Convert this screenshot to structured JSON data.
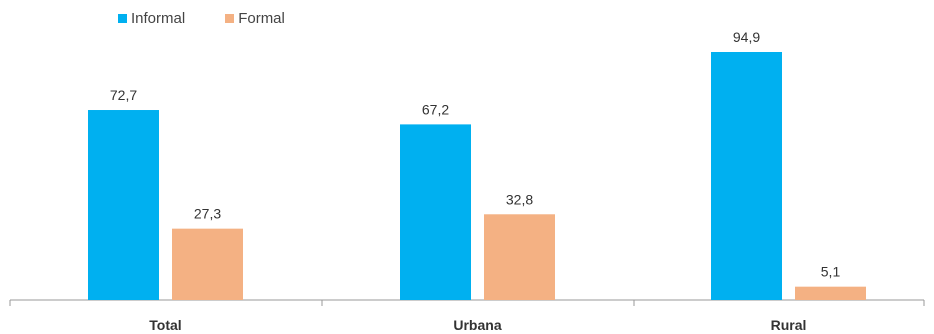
{
  "chart_data": {
    "type": "bar",
    "categories": [
      "Total",
      "Urbana",
      "Rural"
    ],
    "series": [
      {
        "name": "Informal",
        "values": [
          72.7,
          67.2,
          94.9
        ],
        "labels": [
          "72,7",
          "67,2",
          "94,9"
        ],
        "color": "#00B0F0"
      },
      {
        "name": "Formal",
        "values": [
          27.3,
          32.8,
          5.1
        ],
        "labels": [
          "27,3",
          "32,8",
          "5,1"
        ],
        "color": "#F4B183"
      }
    ],
    "ylim": [
      0,
      100
    ],
    "grid": false,
    "legend_position": "top-left"
  }
}
